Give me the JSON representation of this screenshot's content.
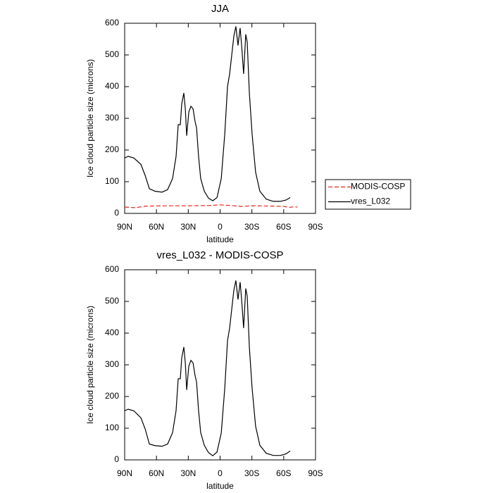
{
  "chart_data": [
    {
      "type": "line",
      "title": "JJA",
      "xlabel": "latitude",
      "ylabel": "Ice cloud particle size (microns)",
      "xlim": [
        90,
        -90
      ],
      "ylim": [
        0,
        600
      ],
      "xticks": [
        {
          "value": 90,
          "label": "90N"
        },
        {
          "value": 60,
          "label": "60N"
        },
        {
          "value": 30,
          "label": "30N"
        },
        0,
        {
          "value": -30,
          "label": "30S"
        },
        {
          "value": -60,
          "label": "60S"
        },
        {
          "value": -90,
          "label": "90S"
        }
      ],
      "yticks": [
        0,
        100,
        200,
        300,
        400,
        500,
        600
      ],
      "legend": "right",
      "series": [
        {
          "name": "MODIS-COSP",
          "color": "#e8261c",
          "linestyle": "dashed",
          "x": [
            90,
            80,
            70,
            50,
            30,
            10,
            0,
            -10,
            -20,
            -30,
            -50,
            -60,
            -65,
            -70,
            -72.7
          ],
          "values": [
            20,
            18,
            23,
            24,
            24,
            25,
            27,
            25,
            22,
            24,
            23,
            22,
            19,
            21,
            20
          ]
        },
        {
          "name": "vres_L032",
          "color": "#000000",
          "linestyle": "solid",
          "x": [
            90,
            86.7,
            81.4,
            74.7,
            70.7,
            66.7,
            61.4,
            54.8,
            49.5,
            44.8,
            41.5,
            39.5,
            37.5,
            36.2,
            34.2,
            32.8,
            31.5,
            29.5,
            27.5,
            25.5,
            23.6,
            22.2,
            20.3,
            18.3,
            14.9,
            10.9,
            6.9,
            2.9,
            -1.1,
            -4.4,
            -7.0,
            -9.0,
            -11.0,
            -13.0,
            -14.9,
            -16.9,
            -18.9,
            -20.3,
            -22.2,
            -24.2,
            -25.6,
            -27.6,
            -30.2,
            -33.5,
            -37.5,
            -43.5,
            -50.1,
            -56.8,
            -62.1,
            -66.1
          ],
          "values": [
            175,
            180,
            175,
            155,
            120,
            78,
            70,
            67,
            75,
            110,
            180,
            280,
            280,
            345,
            380,
            330,
            245,
            320,
            338,
            330,
            290,
            270,
            180,
            110,
            70,
            48,
            40,
            50,
            110,
            250,
            400,
            440,
            500,
            560,
            590,
            530,
            585,
            530,
            440,
            565,
            540,
            380,
            250,
            130,
            70,
            45,
            38,
            38,
            42,
            50
          ]
        }
      ]
    },
    {
      "type": "line",
      "title": "vres_L032 - MODIS-COSP",
      "xlabel": "latitude",
      "ylabel": "Ice cloud particle size (microns)",
      "xlim": [
        90,
        -90
      ],
      "ylim": [
        0,
        600
      ],
      "xticks": [
        {
          "value": 90,
          "label": "90N"
        },
        {
          "value": 60,
          "label": "60N"
        },
        {
          "value": 30,
          "label": "30N"
        },
        0,
        {
          "value": -30,
          "label": "30S"
        },
        {
          "value": -60,
          "label": "60S"
        },
        {
          "value": -90,
          "label": "90S"
        }
      ],
      "yticks": [
        0,
        100,
        200,
        300,
        400,
        500,
        600
      ],
      "series": [
        {
          "color": "#000000",
          "linestyle": "solid",
          "x": [
            90,
            86.7,
            81.4,
            74.7,
            70.7,
            66.7,
            61.4,
            54.8,
            49.5,
            44.8,
            41.5,
            39.5,
            37.5,
            36.2,
            34.2,
            32.8,
            31.5,
            29.5,
            27.5,
            25.5,
            23.6,
            22.2,
            20.3,
            18.3,
            14.9,
            10.9,
            6.9,
            2.9,
            -1.1,
            -4.4,
            -7.0,
            -9.0,
            -11.0,
            -13.0,
            -14.9,
            -16.9,
            -18.9,
            -20.3,
            -22.2,
            -24.2,
            -25.6,
            -27.6,
            -30.2,
            -33.5,
            -37.5,
            -43.5,
            -50.1,
            -56.8,
            -62.1,
            -66.1
          ],
          "values": [
            155,
            160,
            155,
            133,
            98,
            50,
            45,
            43,
            50,
            86,
            156,
            256,
            256,
            321,
            356,
            306,
            221,
            296,
            314,
            306,
            266,
            246,
            156,
            86,
            46,
            23,
            13,
            25,
            85,
            226,
            376,
            416,
            476,
            536,
            566,
            506,
            561,
            506,
            416,
            541,
            516,
            356,
            226,
            106,
            46,
            21,
            14,
            14,
            19,
            28
          ]
        }
      ]
    }
  ]
}
